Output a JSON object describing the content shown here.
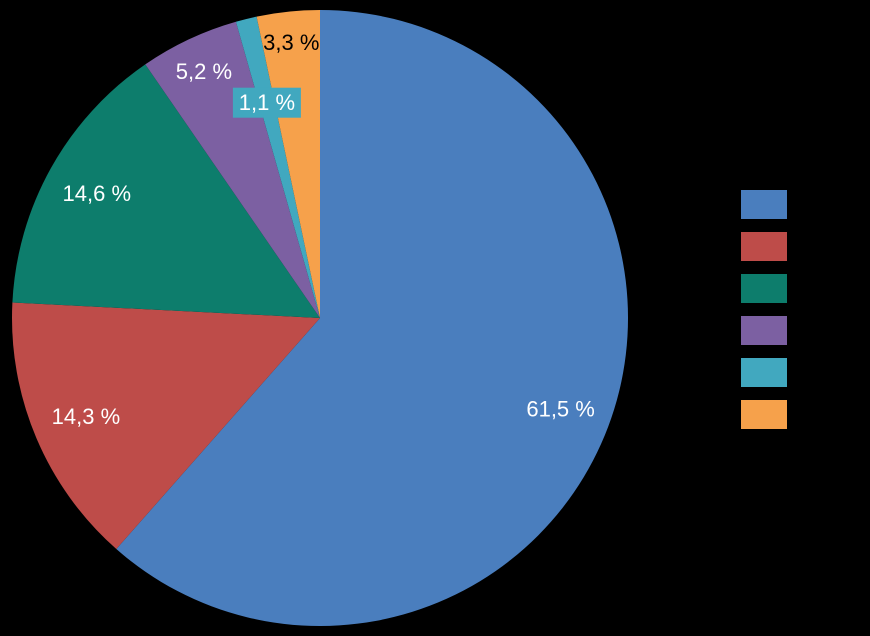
{
  "page": {
    "background_color": "#000000"
  },
  "chart_data": {
    "type": "pie",
    "title": "",
    "unit": "%",
    "start_angle_deg": 0,
    "direction": "clockwise",
    "legend_position": "right",
    "background": "#000000",
    "slices": [
      {
        "value": 61.5,
        "data_label": "61,5 %",
        "color": "#4A7EBE",
        "label_color": "#FFFFFF",
        "label_radius_frac": 0.835,
        "boxed": false
      },
      {
        "value": 14.3,
        "data_label": "14,3 %",
        "color": "#BE4C49",
        "label_color": "#FFFFFF",
        "label_radius_frac": 0.825,
        "boxed": false
      },
      {
        "value": 14.6,
        "data_label": "14,6 %",
        "color": "#0D7D6C",
        "label_color": "#FFFFFF",
        "label_radius_frac": 0.83,
        "boxed": false
      },
      {
        "value": 5.2,
        "data_label": "5,2 %",
        "color": "#7C60A2",
        "label_color": "#FFFFFF",
        "label_radius_frac": 0.885,
        "boxed": false
      },
      {
        "value": 1.1,
        "data_label": "1,1 %",
        "color": "#41A8BF",
        "label_color": "#FFFFFF",
        "label_radius_frac": 0.72,
        "boxed": true
      },
      {
        "value": 3.3,
        "data_label": "3,3 %",
        "color": "#F6A14B",
        "label_color": "#000000",
        "label_radius_frac": 0.9,
        "boxed": false
      }
    ]
  }
}
